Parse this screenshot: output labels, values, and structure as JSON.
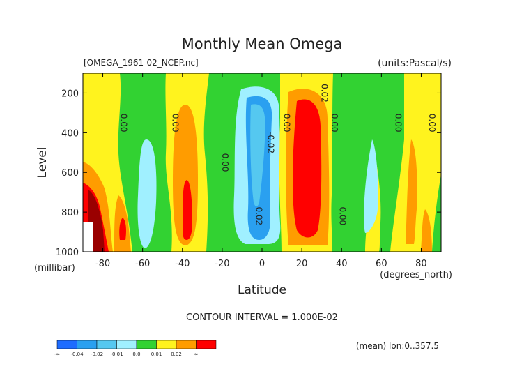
{
  "chart_data": {
    "type": "heatmap",
    "title": "Monthly Mean Omega",
    "file_label": "[OMEGA_1961-02_NCEP.nc]",
    "units_label": "(units:Pascal/s)",
    "xlabel": "Latitude",
    "x_units": "(degrees_north)",
    "ylabel": "Level",
    "y_units": "(millibar)",
    "xlim": [
      -90,
      90
    ],
    "ylim": [
      1000,
      100
    ],
    "x_ticks": [
      "-80",
      "-60",
      "-40",
      "-20",
      "0",
      "20",
      "40",
      "60",
      "80"
    ],
    "x_tick_values": [
      -80,
      -60,
      -40,
      -20,
      0,
      20,
      40,
      60,
      80
    ],
    "y_ticks": [
      "200",
      "400",
      "600",
      "800",
      "1000"
    ],
    "y_tick_values": [
      200,
      400,
      600,
      800,
      1000
    ],
    "contour_interval_text": "CONTOUR INTERVAL = 1.000E-02",
    "contour_labels": [
      {
        "text": "0.00",
        "lat": -71,
        "level": 350
      },
      {
        "text": "0.00",
        "lat": -45,
        "level": 350
      },
      {
        "text": "0.00",
        "lat": -20,
        "level": 550
      },
      {
        "text": "-0.02",
        "lat": 3,
        "level": 450
      },
      {
        "text": "0.02",
        "lat": -3,
        "level": 820
      },
      {
        "text": "0.00",
        "lat": 11,
        "level": 350
      },
      {
        "text": "0.02",
        "lat": 30,
        "level": 200
      },
      {
        "text": "0.00",
        "lat": 35,
        "level": 350
      },
      {
        "text": "0.00",
        "lat": 39,
        "level": 820
      },
      {
        "text": "0.00",
        "lat": 67,
        "level": 350
      },
      {
        "text": "0.00",
        "lat": 84,
        "level": 350
      }
    ],
    "legend": {
      "labels": [
        "-∞",
        "-0.04",
        "-0.02",
        "-0.01",
        "0.0",
        "0.01",
        "0.02",
        "∞"
      ],
      "colors": [
        "#1e6cff",
        "#2aa0f0",
        "#55c8f0",
        "#a0f0ff",
        "#32d232",
        "#fff31e",
        "#ff9c00",
        "#ff0000"
      ]
    },
    "footer_note": "(mean) lon:0..357.5"
  }
}
